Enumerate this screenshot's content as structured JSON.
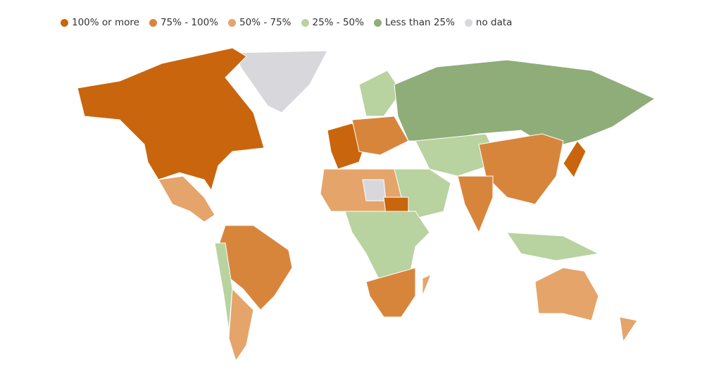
{
  "legend": [
    {
      "label": "100% or more",
      "color": "#c9650d"
    },
    {
      "label": "75% - 100%",
      "color": "#d8853c"
    },
    {
      "label": "50% - 75%",
      "color": "#e4a46a"
    },
    {
      "label": "25% - 50%",
      "color": "#b8d2a0"
    },
    {
      "label": "Less than 25%",
      "color": "#8fad78"
    },
    {
      "label": "no data",
      "color": "#d8d8dc"
    }
  ]
}
